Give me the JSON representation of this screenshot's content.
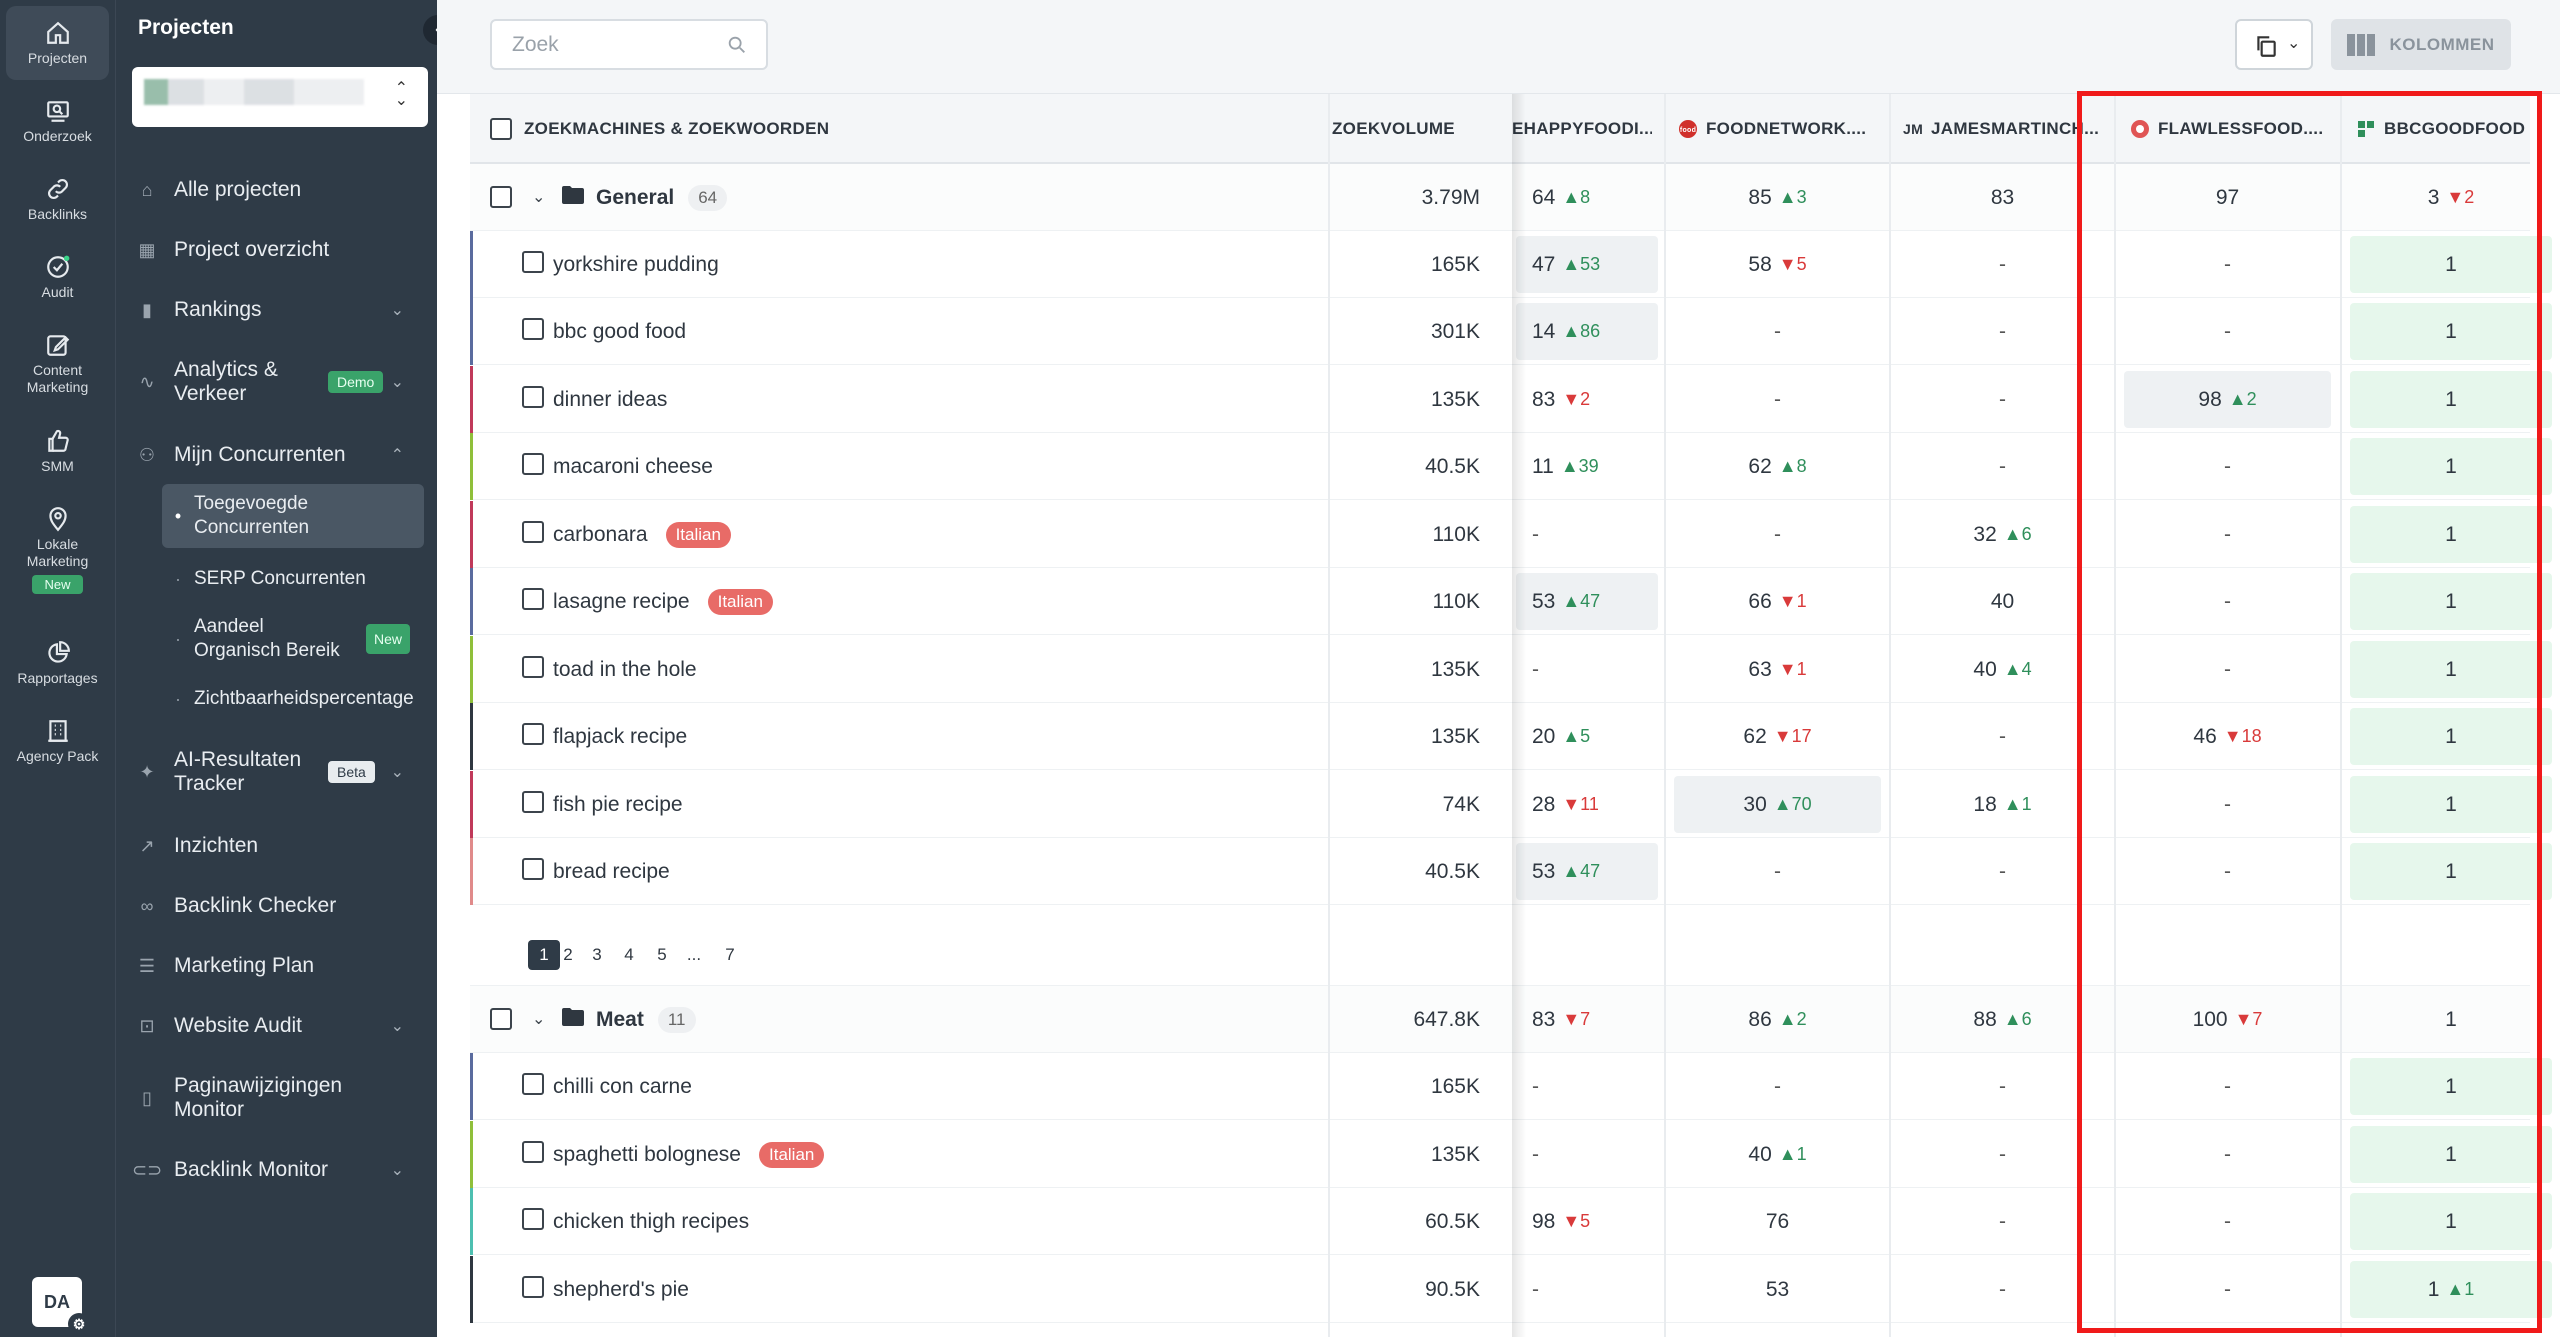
{
  "rail": {
    "items": [
      {
        "label": "Projecten",
        "icon": "home-icon"
      },
      {
        "label": "Onderzoek",
        "icon": "research-icon"
      },
      {
        "label": "Backlinks",
        "icon": "link-icon"
      },
      {
        "label": "Audit",
        "icon": "audit-icon"
      },
      {
        "label": "Content Marketing",
        "icon": "edit-icon"
      },
      {
        "label": "SMM",
        "icon": "thumbs-up-icon"
      },
      {
        "label": "Lokale Marketing",
        "icon": "map-pin-icon",
        "badge": "New"
      },
      {
        "label": "Rapportages",
        "icon": "pie-chart-icon"
      },
      {
        "label": "Agency Pack",
        "icon": "building-icon"
      }
    ],
    "avatar": "DA"
  },
  "sidebar": {
    "title": "Projecten",
    "nav": {
      "alle_projecten": "Alle projecten",
      "project_overzicht": "Project overzicht",
      "rankings": "Rankings",
      "analytics": "Analytics & Verkeer",
      "analytics_badge": "Demo",
      "mijn_concurrenten": "Mijn Concurrenten",
      "sub": {
        "toegevoegde": "Toegevoegde Concurrenten",
        "serp": "SERP Concurrenten",
        "aandeel": "Aandeel Organisch Bereik",
        "aandeel_badge": "New",
        "zicht": "Zichtbaarheidspercentage"
      },
      "ai_tracker": "AI-Resultaten Tracker",
      "ai_badge": "Beta",
      "inzichten": "Inzichten",
      "backlink_checker": "Backlink Checker",
      "marketing_plan": "Marketing Plan",
      "website_audit": "Website Audit",
      "paginawijzigingen": "Paginawijzigingen Monitor",
      "backlink_monitor": "Backlink Monitor"
    }
  },
  "toolbar": {
    "search_placeholder": "Zoek",
    "kolommen": "KOLOMMEN"
  },
  "table": {
    "headers": {
      "kw": "ZOEKMACHINES & ZOEKWOORDEN",
      "volume": "ZOEKVOLUME",
      "c1": "EHAPPYFOODI...",
      "c2": "FOODNETWORK....",
      "c3": "JAMESMARTINCH...",
      "c4": "FLAWLESSFOOD....",
      "c5": "BBCGOODFOOD...."
    },
    "groups": {
      "general": {
        "name": "General",
        "count": "64"
      },
      "meat": {
        "name": "Meat",
        "count": "11"
      }
    },
    "tag_italian": "Italian",
    "rows": [
      {
        "kw": "General",
        "vol": "3.79M",
        "c1": "64",
        "c1d": "▲8",
        "c2": "85",
        "c2d": "▲3",
        "c3": "83",
        "c3d": "",
        "c4": "97",
        "c4d": "",
        "c5": "3",
        "c5d": "▼2"
      },
      {
        "kw": "yorkshire pudding",
        "vol": "165K",
        "c1": "47",
        "c1d": "▲53",
        "c2": "58",
        "c2d": "▼5",
        "c3": "-",
        "c3d": "",
        "c4": "-",
        "c4d": "",
        "c5": "1",
        "c5d": ""
      },
      {
        "kw": "bbc good food",
        "vol": "301K",
        "c1": "14",
        "c1d": "▲86",
        "c2": "-",
        "c2d": "",
        "c3": "-",
        "c3d": "",
        "c4": "-",
        "c4d": "",
        "c5": "1",
        "c5d": ""
      },
      {
        "kw": "dinner ideas",
        "vol": "135K",
        "c1": "83",
        "c1d": "▼2",
        "c2": "-",
        "c2d": "",
        "c3": "-",
        "c3d": "",
        "c4": "98",
        "c4d": "▲2",
        "c5": "1",
        "c5d": ""
      },
      {
        "kw": "macaroni cheese",
        "vol": "40.5K",
        "c1": "11",
        "c1d": "▲39",
        "c2": "62",
        "c2d": "▲8",
        "c3": "-",
        "c3d": "",
        "c4": "-",
        "c4d": "",
        "c5": "1",
        "c5d": ""
      },
      {
        "kw": "carbonara",
        "vol": "110K",
        "c1": "-",
        "c1d": "",
        "c2": "-",
        "c2d": "",
        "c3": "32",
        "c3d": "▲6",
        "c4": "-",
        "c4d": "",
        "c5": "1",
        "c5d": ""
      },
      {
        "kw": "lasagne recipe",
        "vol": "110K",
        "c1": "53",
        "c1d": "▲47",
        "c2": "66",
        "c2d": "▼1",
        "c3": "40",
        "c3d": "",
        "c4": "-",
        "c4d": "",
        "c5": "1",
        "c5d": ""
      },
      {
        "kw": "toad in the hole",
        "vol": "135K",
        "c1": "-",
        "c1d": "",
        "c2": "63",
        "c2d": "▼1",
        "c3": "40",
        "c3d": "▲4",
        "c4": "-",
        "c4d": "",
        "c5": "1",
        "c5d": ""
      },
      {
        "kw": "flapjack recipe",
        "vol": "135K",
        "c1": "20",
        "c1d": "▲5",
        "c2": "62",
        "c2d": "▼17",
        "c3": "-",
        "c3d": "",
        "c4": "46",
        "c4d": "▼18",
        "c5": "1",
        "c5d": ""
      },
      {
        "kw": "fish pie recipe",
        "vol": "74K",
        "c1": "28",
        "c1d": "▼11",
        "c2": "30",
        "c2d": "▲70",
        "c3": "18",
        "c3d": "▲1",
        "c4": "-",
        "c4d": "",
        "c5": "1",
        "c5d": ""
      },
      {
        "kw": "bread recipe",
        "vol": "40.5K",
        "c1": "53",
        "c1d": "▲47",
        "c2": "-",
        "c2d": "",
        "c3": "-",
        "c3d": "",
        "c4": "-",
        "c4d": "",
        "c5": "1",
        "c5d": ""
      },
      {
        "kw": "Meat",
        "vol": "647.8K",
        "c1": "83",
        "c1d": "▼7",
        "c2": "86",
        "c2d": "▲2",
        "c3": "88",
        "c3d": "▲6",
        "c4": "100",
        "c4d": "▼7",
        "c5": "1",
        "c5d": ""
      },
      {
        "kw": "chilli con carne",
        "vol": "165K",
        "c1": "-",
        "c1d": "",
        "c2": "-",
        "c2d": "",
        "c3": "-",
        "c3d": "",
        "c4": "-",
        "c4d": "",
        "c5": "1",
        "c5d": ""
      },
      {
        "kw": "spaghetti bolognese",
        "vol": "135K",
        "c1": "-",
        "c1d": "",
        "c2": "40",
        "c2d": "▲1",
        "c3": "-",
        "c3d": "",
        "c4": "-",
        "c4d": "",
        "c5": "1",
        "c5d": ""
      },
      {
        "kw": "chicken thigh recipes",
        "vol": "60.5K",
        "c1": "98",
        "c1d": "▼5",
        "c2": "76",
        "c2d": "",
        "c3": "-",
        "c3d": "",
        "c4": "-",
        "c4d": "",
        "c5": "1",
        "c5d": ""
      },
      {
        "kw": "shepherd's pie",
        "vol": "90.5K",
        "c1": "-",
        "c1d": "",
        "c2": "53",
        "c2d": "",
        "c3": "-",
        "c3d": "",
        "c4": "-",
        "c4d": "",
        "c5": "1",
        "c5d": "▲1"
      }
    ],
    "pagination": [
      "1",
      "2",
      "3",
      "4",
      "5",
      "...",
      "7"
    ]
  }
}
